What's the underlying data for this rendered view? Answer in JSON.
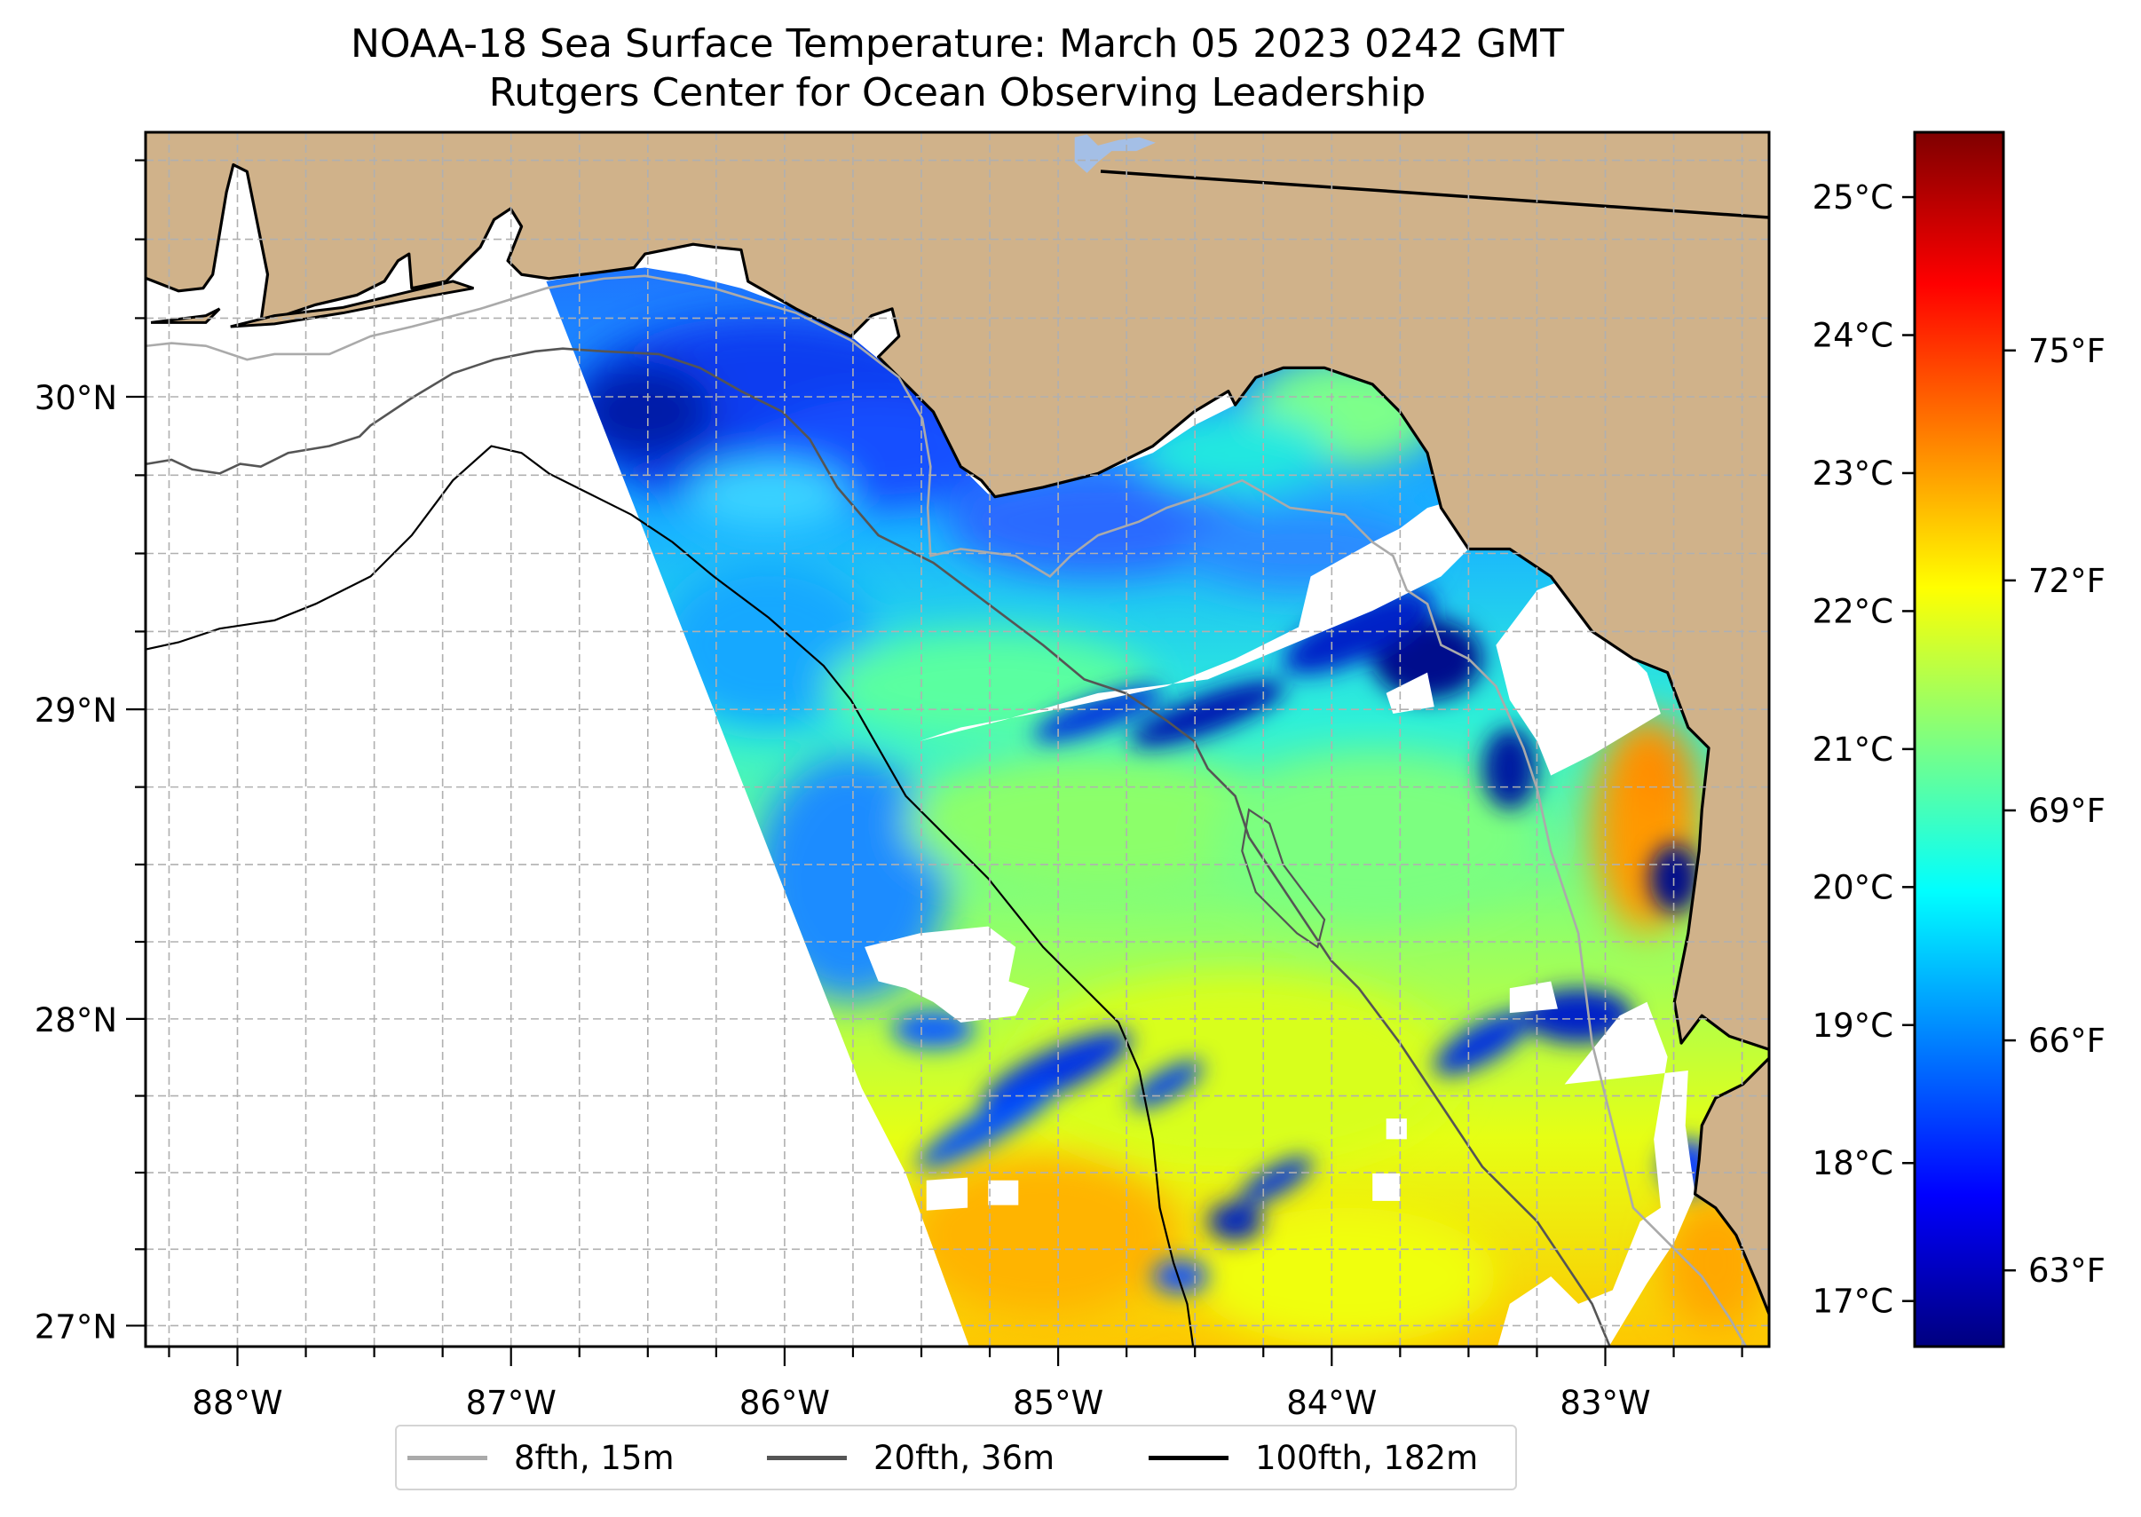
{
  "title": {
    "line1": "NOAA-18 Sea Surface Temperature: March 05 2023 0242 GMT",
    "line2": "Rutgers Center for Ocean Observing Leadership"
  },
  "map": {
    "extent": {
      "lon_min": -88.34,
      "lon_max": -82.4,
      "lat_min": 26.94,
      "lat_max": 30.85
    },
    "lon_ticks": [
      {
        "value": -88,
        "label": "88°W"
      },
      {
        "value": -87,
        "label": "87°W"
      },
      {
        "value": -86,
        "label": "86°W"
      },
      {
        "value": -85,
        "label": "85°W"
      },
      {
        "value": -84,
        "label": "84°W"
      },
      {
        "value": -83,
        "label": "83°W"
      }
    ],
    "lat_ticks": [
      {
        "value": 27,
        "label": "27°N"
      },
      {
        "value": 28,
        "label": "28°N"
      },
      {
        "value": 29,
        "label": "29°N"
      },
      {
        "value": 30,
        "label": "30°N"
      }
    ],
    "minor_tick_step_deg": 0.25,
    "gridlines": true,
    "colors": {
      "land": "#d0b28a",
      "lake": "#a4bfe6",
      "grid": "#b0b0b0",
      "isobath_8fth": "#aaaaaa",
      "isobath_20fth": "#555555",
      "isobath_100fth": "#000000"
    }
  },
  "colorbar": {
    "colormap": "jet",
    "range_c": [
      16.67,
      25.47
    ],
    "celsius_ticks": [
      {
        "value": 17,
        "label": "17°C"
      },
      {
        "value": 18,
        "label": "18°C"
      },
      {
        "value": 19,
        "label": "19°C"
      },
      {
        "value": 20,
        "label": "20°C"
      },
      {
        "value": 21,
        "label": "21°C"
      },
      {
        "value": 22,
        "label": "22°C"
      },
      {
        "value": 23,
        "label": "23°C"
      },
      {
        "value": 24,
        "label": "24°C"
      },
      {
        "value": 25,
        "label": "25°C"
      }
    ],
    "fahrenheit_ticks": [
      {
        "value": 63,
        "label": "63°F"
      },
      {
        "value": 66,
        "label": "66°F"
      },
      {
        "value": 69,
        "label": "69°F"
      },
      {
        "value": 72,
        "label": "72°F"
      },
      {
        "value": 75,
        "label": "75°F"
      }
    ],
    "stops": [
      "#00007f",
      "#0000ff",
      "#007fff",
      "#00ffff",
      "#7fff7f",
      "#ffff00",
      "#ff7f00",
      "#ff0000",
      "#7f0000"
    ]
  },
  "legend": {
    "placement": "bottom-center",
    "items": [
      {
        "label": "8fth, 15m",
        "color": "#aaaaaa"
      },
      {
        "label": "20fth, 36m",
        "color": "#555555"
      },
      {
        "label": "100fth, 182m",
        "color": "#000000"
      }
    ]
  }
}
